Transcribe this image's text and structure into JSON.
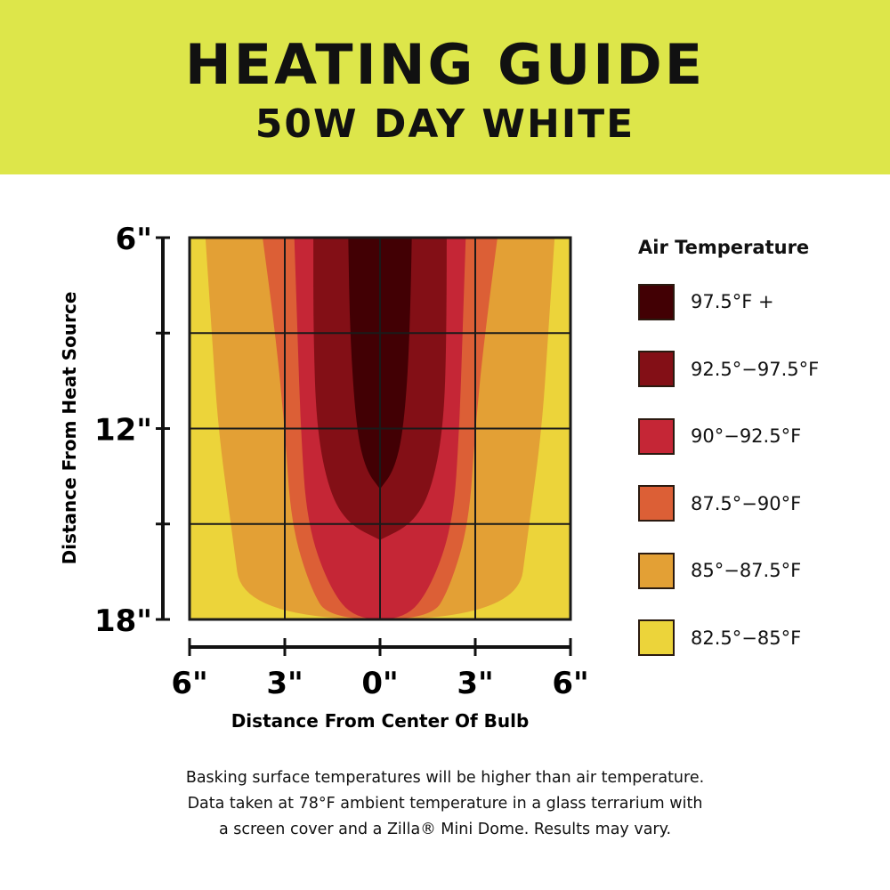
{
  "header": {
    "title": "HEATING GUIDE",
    "subtitle": "50W DAY WHITE"
  },
  "chart_data": {
    "type": "heatmap",
    "xlabel": "Distance From Center Of Bulb",
    "ylabel": "Distance From Heat Source",
    "x_ticks": [
      {
        "value": -6,
        "label": "6\""
      },
      {
        "value": -3,
        "label": "3\""
      },
      {
        "value": 0,
        "label": "0\""
      },
      {
        "value": 3,
        "label": "3\""
      },
      {
        "value": 6,
        "label": "6\""
      }
    ],
    "y_ticks": [
      {
        "value": 6,
        "label": "6\""
      },
      {
        "value": 9,
        "label": ""
      },
      {
        "value": 12,
        "label": "12\""
      },
      {
        "value": 15,
        "label": ""
      },
      {
        "value": 18,
        "label": "18\""
      }
    ],
    "xlim": [
      -6,
      6
    ],
    "ylim": [
      6,
      18
    ],
    "grid": true,
    "legend": {
      "title": "Air Temperature",
      "placement": "right"
    },
    "bands": [
      {
        "label": "82.5°−85°F",
        "color": "#ecd43a",
        "contour": null
      },
      {
        "label": "85°−87.5°F",
        "color": "#e3a035",
        "contour": [
          [
            6,
            5.5
          ],
          [
            9,
            5.3
          ],
          [
            12,
            5.1
          ],
          [
            15,
            4.7
          ],
          [
            18,
            4.3
          ]
        ]
      },
      {
        "label": "87.5°−90°F",
        "color": "#dc5f36",
        "contour": [
          [
            6,
            3.7
          ],
          [
            9,
            3.3
          ],
          [
            12,
            3.0
          ],
          [
            15,
            2.8
          ],
          [
            17,
            2.2
          ],
          [
            18,
            1.6
          ]
        ]
      },
      {
        "label": "90°−92.5°F",
        "color": "#c52636",
        "contour": [
          [
            6,
            2.7
          ],
          [
            9,
            2.6
          ],
          [
            12,
            2.5
          ],
          [
            15,
            2.3
          ],
          [
            17,
            1.6
          ],
          [
            18,
            0.8
          ]
        ]
      },
      {
        "label": "92.5°−97.5°F",
        "color": "#830f16",
        "contour": [
          [
            6,
            2.1
          ],
          [
            9,
            2.1
          ],
          [
            12,
            2.0
          ],
          [
            14,
            1.6
          ],
          [
            15,
            1.0
          ],
          [
            15.5,
            0
          ]
        ]
      },
      {
        "label": "97.5°F +",
        "color": "#420004",
        "contour": [
          [
            6,
            1.0
          ],
          [
            9,
            0.95
          ],
          [
            12,
            0.75
          ],
          [
            13.3,
            0.45
          ],
          [
            13.9,
            0
          ]
        ]
      }
    ]
  },
  "footer": {
    "line1": "Basking surface temperatures will be higher than air temperature.",
    "line2": "Data taken at 78°F ambient temperature in a glass terrarium with",
    "line3": "a screen cover and a Zilla® Mini Dome. Results may vary."
  }
}
